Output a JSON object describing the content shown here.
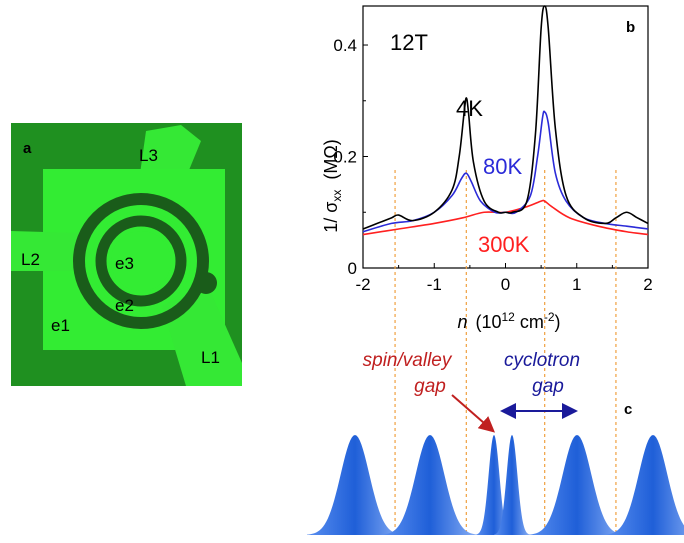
{
  "panel_a": {
    "letter": "a",
    "labels": {
      "L1": "L1",
      "L2": "L2",
      "L3": "L3",
      "e1": "e1",
      "e2": "e2",
      "e3": "e3"
    },
    "colors": {
      "background": "#1e8a1e",
      "pad": "#33ee33",
      "ring": "#1c5a1c"
    }
  },
  "panel_b": {
    "letter": "b",
    "field": "12T",
    "ylabel_main": "1/ σ",
    "ylabel_sub": "xx",
    "ylabel_unit": "(MΩ)",
    "xlabel_var": "n",
    "xlabel_unit": "(10",
    "xlabel_exp": "12",
    "xlabel_tail": " cm",
    "xlabel_exp2": "-2",
    "xlabel_close": ")",
    "chart_data": {
      "type": "line",
      "xlim": [
        -2,
        2
      ],
      "ylim": [
        0,
        0.47
      ],
      "x_ticks": [
        "-2",
        "-1",
        "0",
        "1",
        "2"
      ],
      "y_ticks": [
        "0",
        "0.2",
        "0.4"
      ],
      "vlines_x": [
        -1.55,
        -0.55,
        0.55,
        1.55
      ],
      "series": [
        {
          "name": "4K",
          "color": "#000000",
          "x": [
            -2,
            -1.8,
            -1.6,
            -1.5,
            -1.3,
            -1.0,
            -0.75,
            -0.65,
            -0.58,
            -0.55,
            -0.52,
            -0.45,
            -0.3,
            -0.1,
            0,
            0.1,
            0.3,
            0.42,
            0.5,
            0.55,
            0.6,
            0.7,
            0.85,
            1.1,
            1.4,
            1.55,
            1.7,
            1.85,
            2
          ],
          "y": [
            0.07,
            0.08,
            0.09,
            0.095,
            0.085,
            0.1,
            0.14,
            0.2,
            0.28,
            0.305,
            0.28,
            0.19,
            0.12,
            0.1,
            0.1,
            0.1,
            0.12,
            0.24,
            0.43,
            0.47,
            0.43,
            0.25,
            0.13,
            0.09,
            0.08,
            0.09,
            0.1,
            0.09,
            0.08
          ]
        },
        {
          "name": "80K",
          "color": "#2b2bd8",
          "x": [
            -2,
            -1.6,
            -1.3,
            -1.0,
            -0.75,
            -0.62,
            -0.55,
            -0.48,
            -0.35,
            -0.15,
            0,
            0.15,
            0.35,
            0.45,
            0.52,
            0.55,
            0.6,
            0.7,
            0.85,
            1.1,
            1.4,
            1.7,
            2
          ],
          "y": [
            0.065,
            0.08,
            0.085,
            0.1,
            0.13,
            0.16,
            0.17,
            0.155,
            0.12,
            0.1,
            0.1,
            0.1,
            0.13,
            0.2,
            0.27,
            0.28,
            0.26,
            0.17,
            0.12,
            0.09,
            0.08,
            0.075,
            0.07
          ]
        },
        {
          "name": "300K",
          "color": "#ff2020",
          "x": [
            -2,
            -1.5,
            -1.0,
            -0.6,
            -0.3,
            0,
            0.3,
            0.5,
            0.55,
            0.65,
            0.9,
            1.3,
            1.7,
            2
          ],
          "y": [
            0.06,
            0.07,
            0.08,
            0.09,
            0.1,
            0.1,
            0.11,
            0.12,
            0.12,
            0.11,
            0.09,
            0.075,
            0.065,
            0.06
          ]
        }
      ]
    },
    "series_labels": {
      "k4": "4K",
      "k80": "80K",
      "k300": "300K"
    }
  },
  "panel_c": {
    "letter": "c",
    "spin_valley_line1": "spin/valley",
    "spin_valley_line2": "gap",
    "cyclotron_line1": "cyclotron",
    "cyclotron_line2": "gap",
    "peak_color": "#2f6fe6",
    "spin_color": "#c02020",
    "cyclotron_color": "#1a1a9a"
  }
}
